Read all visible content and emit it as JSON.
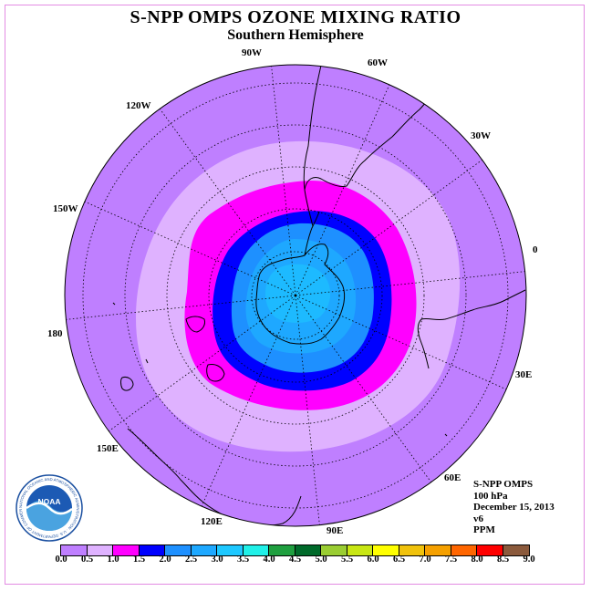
{
  "title": "S-NPP OMPS OZONE MIXING RATIO",
  "subtitle": "Southern Hemisphere",
  "longitude_labels": [
    "90W",
    "60W",
    "30W",
    "0",
    "30E",
    "60E",
    "90E",
    "120E",
    "150E",
    "180",
    "150W",
    "120W"
  ],
  "info": {
    "instrument": "S-NPP OMPS",
    "pressure": "100 hPa",
    "date": "December 15, 2013",
    "version": "v6",
    "units": "PPM"
  },
  "colorbar": {
    "colors": [
      "#bf7fff",
      "#dfb2ff",
      "#ff00ff",
      "#0000ff",
      "#1e90ff",
      "#1ea8ff",
      "#1ec8ff",
      "#20f0e8",
      "#1f9f3f",
      "#006a2a",
      "#9acd32",
      "#c8e614",
      "#ffff00",
      "#f0c20c",
      "#f5a000",
      "#ff6600",
      "#ff0000",
      "#8b5a3c"
    ],
    "labels": [
      "0.0",
      "0.5",
      "1.0",
      "1.5",
      "2.0",
      "2.5",
      "3.0",
      "3.5",
      "4.0",
      "4.5",
      "5.0",
      "5.5",
      "6.0",
      "6.5",
      "7.0",
      "7.5",
      "8.0",
      "8.5",
      "9.0"
    ]
  },
  "logo": {
    "text": "NOAA",
    "ring_text": "NATIONAL OCEANIC AND ATMOSPHERIC ADMINISTRATION · U.S. DEPARTMENT OF COMMERCE"
  }
}
